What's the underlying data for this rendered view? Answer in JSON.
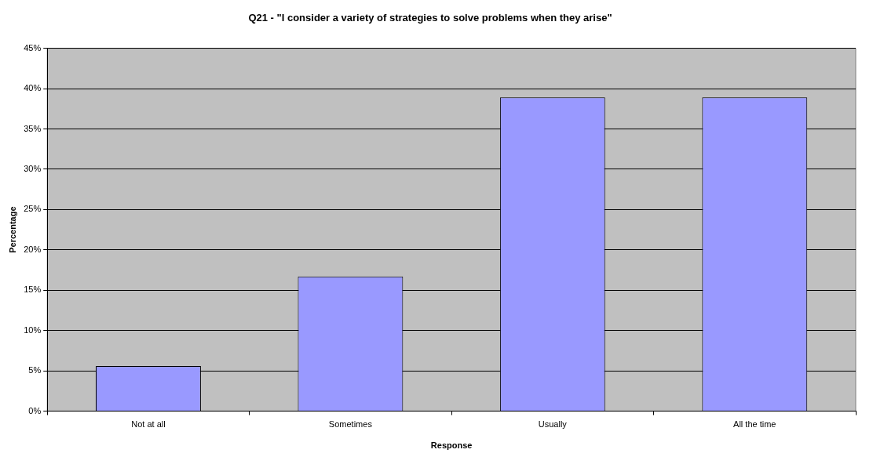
{
  "chart_data": {
    "type": "bar",
    "title": "Q21 - \"I consider a variety of strategies to solve problems when they arise\"",
    "xlabel": "Response",
    "ylabel": "Percentage",
    "categories": [
      "Not at all",
      "Sometimes",
      "Usually",
      "All the time"
    ],
    "values": [
      5.6,
      16.7,
      38.9,
      38.9
    ],
    "color": "#9999ff",
    "ylim": [
      0,
      45
    ],
    "yticks": [
      {
        "value": 0,
        "label": "0%"
      },
      {
        "value": 5,
        "label": "5%"
      },
      {
        "value": 10,
        "label": "10%"
      },
      {
        "value": 15,
        "label": "15%"
      },
      {
        "value": 20,
        "label": "20%"
      },
      {
        "value": 25,
        "label": "25%"
      },
      {
        "value": 30,
        "label": "30%"
      },
      {
        "value": 35,
        "label": "35%"
      },
      {
        "value": 40,
        "label": "40%"
      },
      {
        "value": 45,
        "label": "45%"
      }
    ],
    "grid": "y",
    "legend": false
  }
}
